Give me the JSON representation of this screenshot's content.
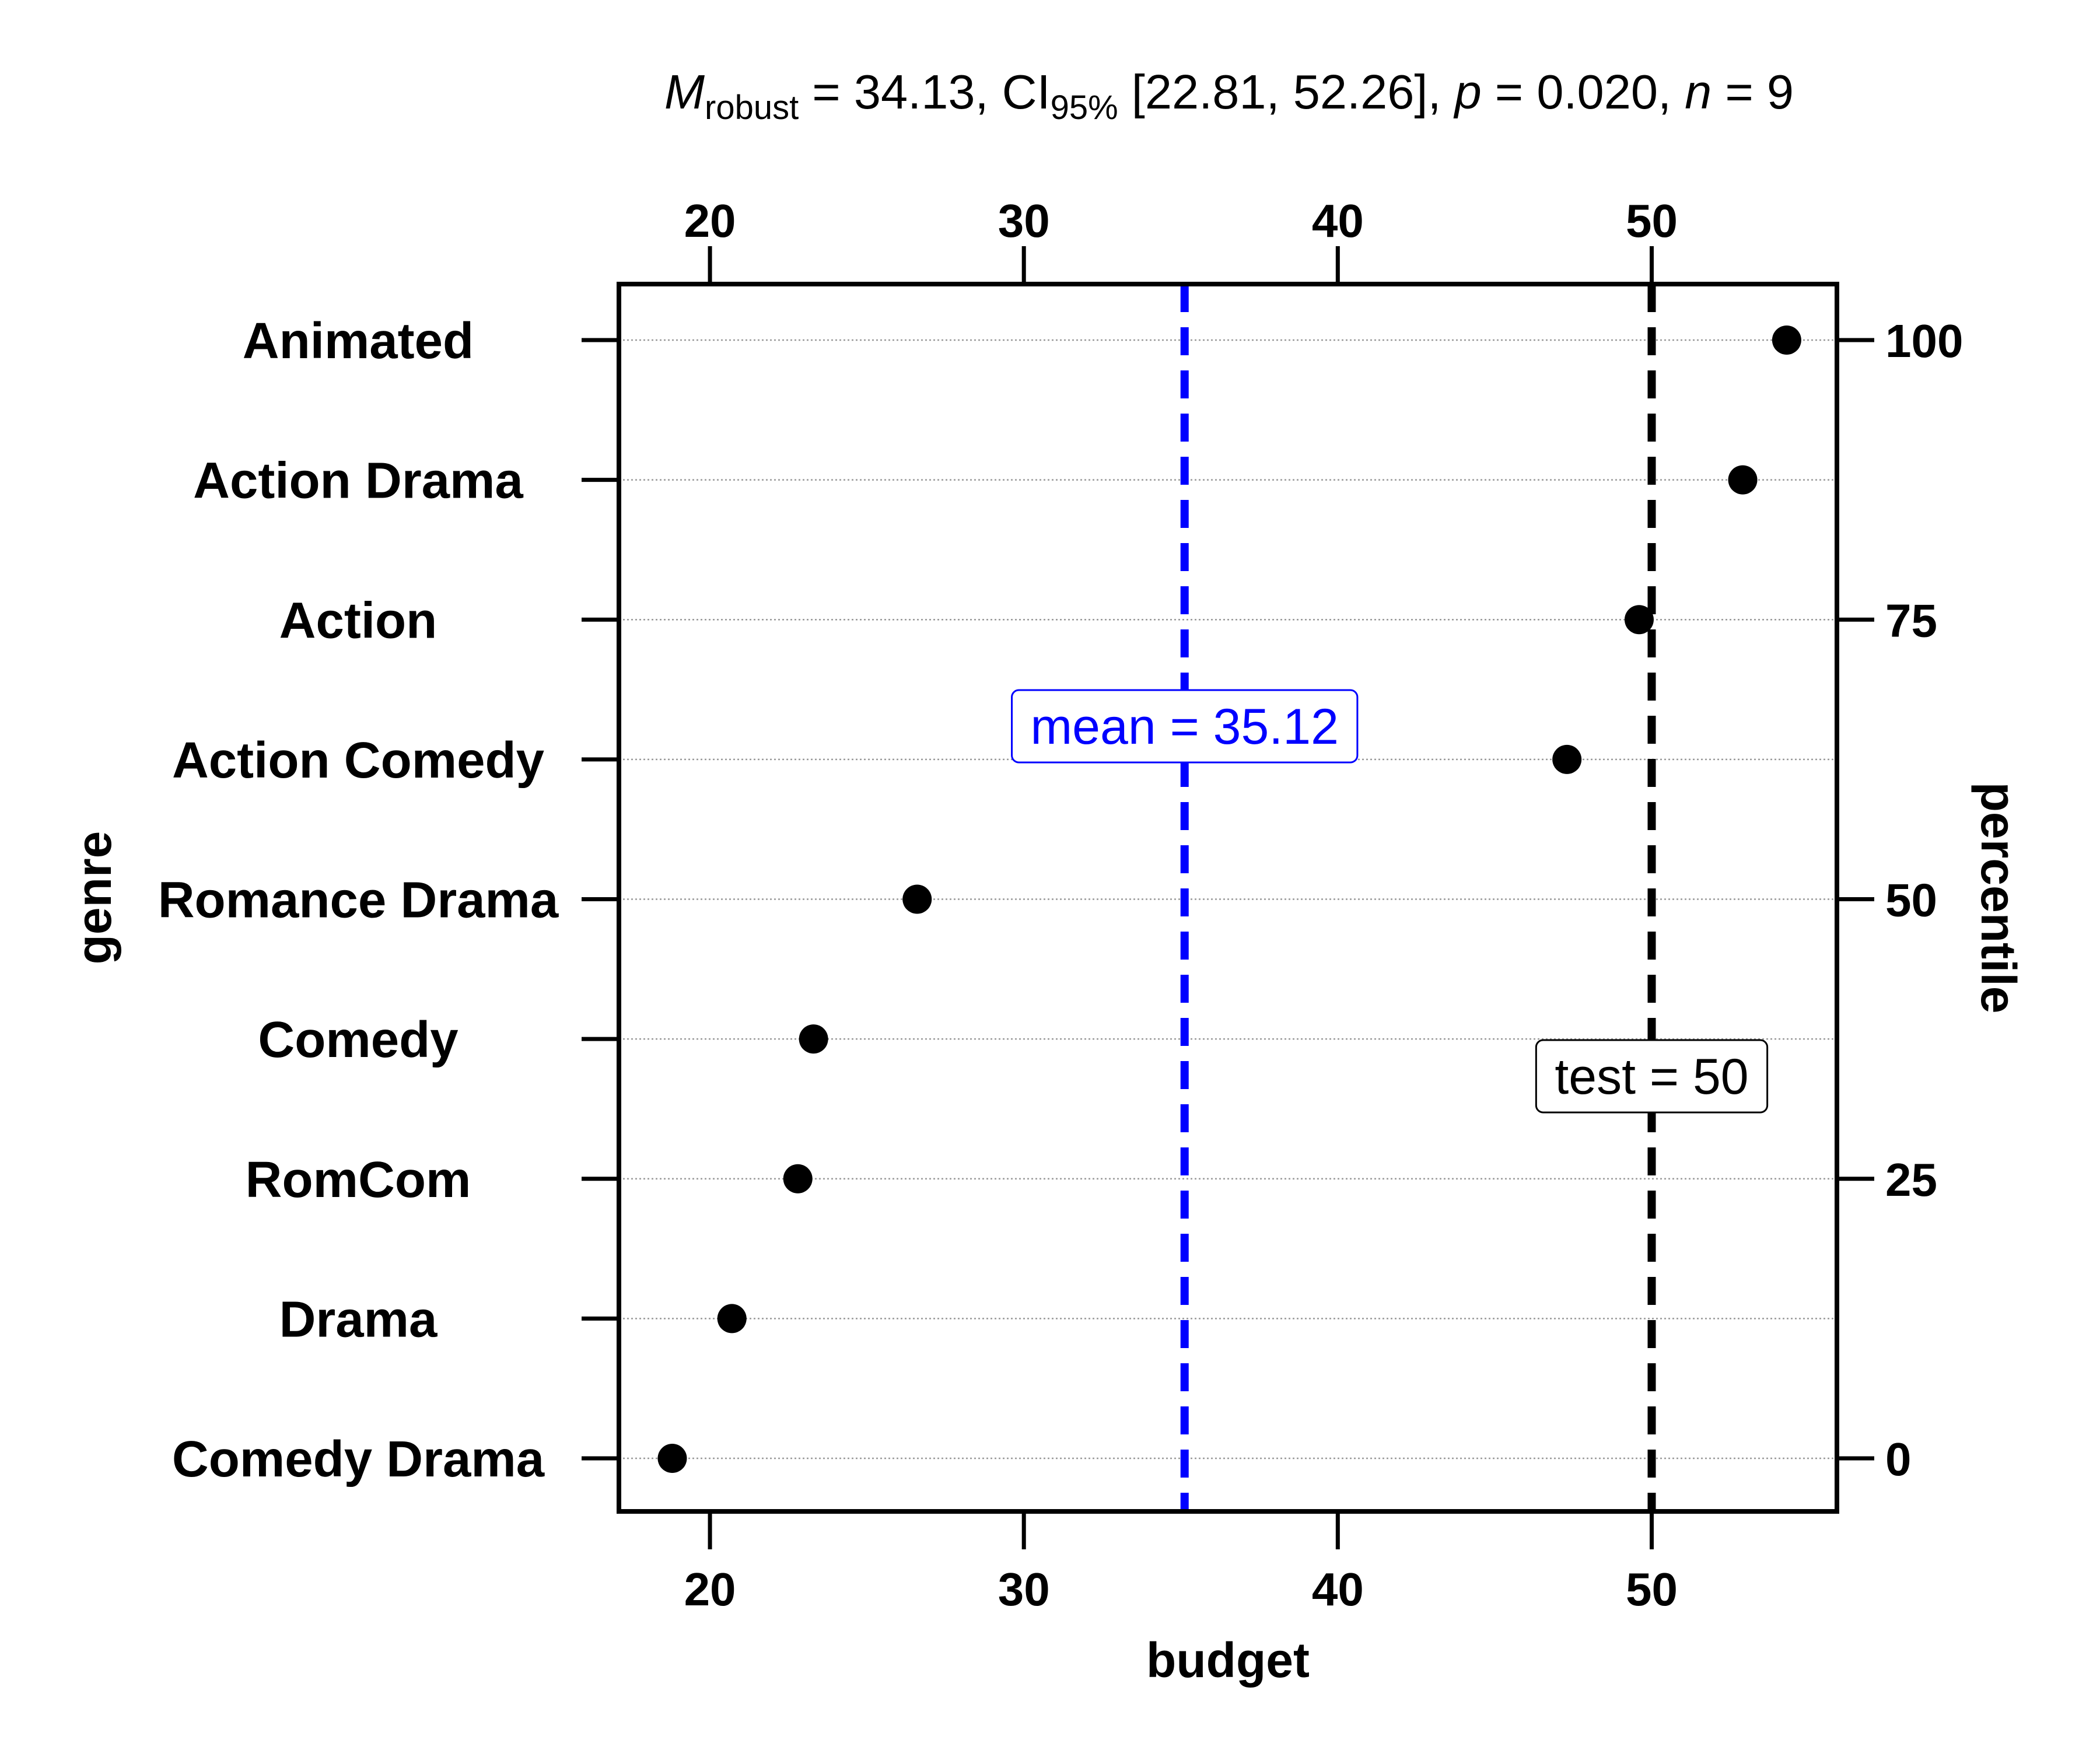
{
  "subtitle": {
    "m_symbol": "M",
    "m_subscript": "robust",
    "m_value": " = 34.13, ",
    "ci_symbol": "CI",
    "ci_subscript": "95%",
    "ci_value": " [22.81, 52.26], ",
    "p_symbol": "p",
    "p_value": " = 0.020, ",
    "n_symbol": "n",
    "n_value": " = 9"
  },
  "chart_data": {
    "type": "scatter",
    "xlabel": "budget",
    "ylabel": "genre",
    "y2label": "percentile",
    "xlim": [
      17.1,
      55.9
    ],
    "x_ticks": [
      20,
      30,
      40,
      50
    ],
    "y2_ticks": [
      0,
      25,
      50,
      75,
      100
    ],
    "grid": "horizontal dotted",
    "categories": [
      "Comedy Drama",
      "Drama",
      "RomCom",
      "Comedy",
      "Romance Drama",
      "Action Comedy",
      "Action",
      "Action Drama",
      "Animated"
    ],
    "values": [
      18.8,
      20.7,
      22.8,
      23.3,
      26.6,
      47.3,
      49.6,
      52.9,
      54.3
    ],
    "percentiles": [
      0,
      12.5,
      25,
      37.5,
      50,
      62.5,
      75,
      87.5,
      100
    ],
    "reference_lines": [
      {
        "label": "mean",
        "value": 35.12,
        "color": "#0000ff",
        "style": "dashed",
        "annotation": "mean = 35.12"
      },
      {
        "label": "test",
        "value": 50,
        "color": "#000000",
        "style": "dashed",
        "annotation": "test = 50"
      }
    ],
    "point_color": "#000000"
  }
}
